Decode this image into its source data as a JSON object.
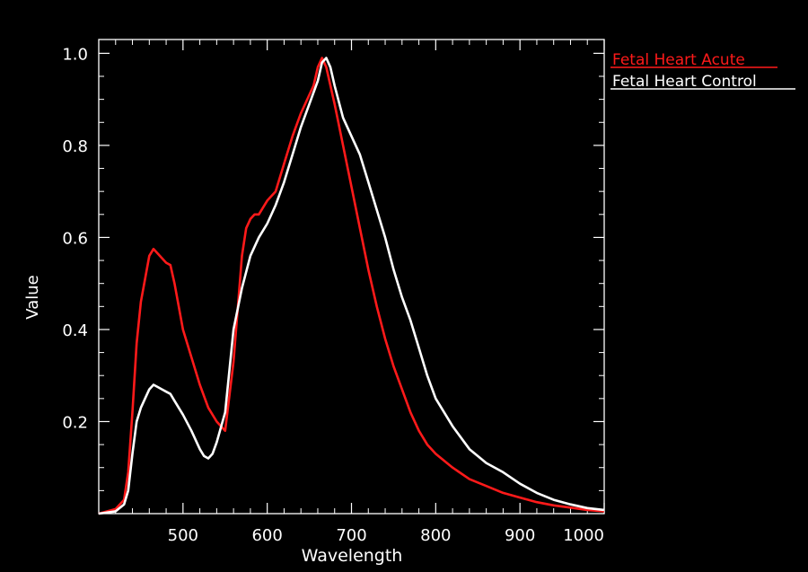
{
  "chart_data": {
    "type": "line",
    "title": "",
    "xlabel": "Wavelength",
    "ylabel": "Value",
    "xlim": [
      400,
      1000
    ],
    "ylim": [
      0,
      1.03
    ],
    "grid": false,
    "legend_position": "right-top",
    "x_ticks": [
      500,
      600,
      700,
      800,
      900,
      1000
    ],
    "y_ticks": [
      0.2,
      0.4,
      0.6,
      0.8,
      1.0
    ],
    "x_tick_labels": [
      "500",
      "600",
      "700",
      "800",
      "900",
      "1000"
    ],
    "y_tick_labels": [
      "0.2",
      "0.4",
      "0.6",
      "0.8",
      "1.0"
    ],
    "series": [
      {
        "name": "Fetal Heart Acute",
        "color": "#ff1a1a",
        "x": [
          400,
          420,
          430,
          435,
          440,
          445,
          450,
          455,
          460,
          465,
          470,
          475,
          480,
          485,
          490,
          500,
          510,
          520,
          530,
          540,
          550,
          560,
          570,
          575,
          580,
          585,
          590,
          600,
          610,
          620,
          630,
          640,
          650,
          655,
          660,
          665,
          670,
          680,
          690,
          700,
          710,
          720,
          730,
          740,
          750,
          760,
          770,
          780,
          790,
          800,
          820,
          840,
          860,
          880,
          900,
          920,
          940,
          960,
          980,
          1000
        ],
        "y": [
          0.0,
          0.01,
          0.03,
          0.09,
          0.22,
          0.37,
          0.46,
          0.51,
          0.56,
          0.575,
          0.565,
          0.555,
          0.545,
          0.54,
          0.5,
          0.4,
          0.34,
          0.28,
          0.23,
          0.2,
          0.18,
          0.33,
          0.56,
          0.62,
          0.64,
          0.65,
          0.65,
          0.68,
          0.7,
          0.76,
          0.82,
          0.87,
          0.91,
          0.93,
          0.97,
          0.99,
          0.97,
          0.89,
          0.8,
          0.71,
          0.62,
          0.53,
          0.45,
          0.38,
          0.32,
          0.27,
          0.22,
          0.18,
          0.15,
          0.13,
          0.1,
          0.075,
          0.06,
          0.045,
          0.035,
          0.025,
          0.018,
          0.013,
          0.008,
          0.005
        ]
      },
      {
        "name": "Fetal Heart Control",
        "color": "#ffffff",
        "x": [
          400,
          420,
          430,
          435,
          440,
          445,
          450,
          455,
          460,
          465,
          470,
          475,
          480,
          485,
          490,
          500,
          510,
          520,
          525,
          530,
          535,
          540,
          550,
          560,
          570,
          580,
          590,
          600,
          610,
          620,
          630,
          640,
          650,
          660,
          665,
          670,
          675,
          680,
          690,
          700,
          710,
          720,
          730,
          740,
          750,
          760,
          770,
          780,
          790,
          800,
          820,
          840,
          860,
          880,
          900,
          920,
          940,
          960,
          980,
          1000
        ],
        "y": [
          0.0,
          0.005,
          0.02,
          0.05,
          0.13,
          0.2,
          0.23,
          0.25,
          0.27,
          0.28,
          0.275,
          0.27,
          0.265,
          0.26,
          0.245,
          0.215,
          0.18,
          0.14,
          0.125,
          0.12,
          0.13,
          0.155,
          0.22,
          0.4,
          0.49,
          0.56,
          0.6,
          0.63,
          0.67,
          0.72,
          0.78,
          0.84,
          0.89,
          0.94,
          0.98,
          0.99,
          0.97,
          0.93,
          0.86,
          0.82,
          0.78,
          0.72,
          0.66,
          0.6,
          0.53,
          0.47,
          0.42,
          0.36,
          0.3,
          0.25,
          0.19,
          0.14,
          0.11,
          0.09,
          0.065,
          0.045,
          0.03,
          0.02,
          0.012,
          0.008
        ]
      }
    ]
  }
}
